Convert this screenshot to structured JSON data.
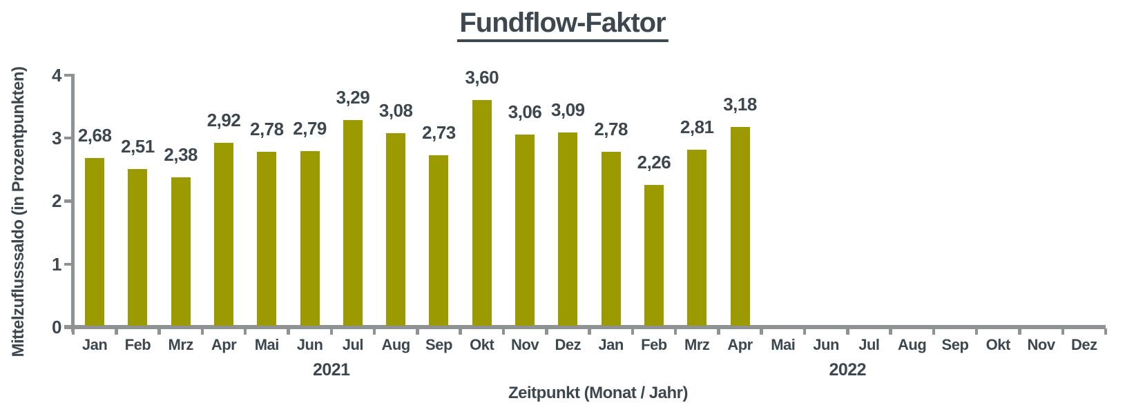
{
  "title": "Fundflow-Faktor",
  "colors": {
    "bar": "#9b9a00",
    "text": "#3d4750",
    "axis": "#8e9295"
  },
  "chart_data": {
    "type": "bar",
    "title": "Fundflow-Faktor",
    "xlabel": "Zeitpunkt (Monat / Jahr)",
    "ylabel": "Mittelzuflusssaldo (in Prozentpunkten)",
    "ylim": [
      0,
      4
    ],
    "ytick_labels": [
      "0",
      "1",
      "2",
      "3",
      "4"
    ],
    "grid": false,
    "legend": false,
    "categories": [
      "Jan",
      "Feb",
      "Mrz",
      "Apr",
      "Mai",
      "Jun",
      "Jul",
      "Aug",
      "Sep",
      "Okt",
      "Nov",
      "Dez",
      "Jan",
      "Feb",
      "Mrz",
      "Apr",
      "Mai",
      "Jun",
      "Jul",
      "Aug",
      "Sep",
      "Okt",
      "Nov",
      "Dez"
    ],
    "year_groups": [
      {
        "label": "2021",
        "start_index": 0,
        "end_index": 11
      },
      {
        "label": "2022",
        "start_index": 12,
        "end_index": 23
      }
    ],
    "values": [
      2.68,
      2.51,
      2.38,
      2.92,
      2.78,
      2.79,
      3.29,
      3.08,
      2.73,
      3.6,
      3.06,
      3.09,
      2.78,
      2.26,
      2.81,
      3.18,
      null,
      null,
      null,
      null,
      null,
      null,
      null,
      null
    ],
    "value_labels": [
      "2,68",
      "2,51",
      "2,38",
      "2,92",
      "2,78",
      "2,79",
      "3,29",
      "3,08",
      "2,73",
      "3,60",
      "3,06",
      "3,09",
      "2,78",
      "2,26",
      "2,81",
      "3,18",
      null,
      null,
      null,
      null,
      null,
      null,
      null,
      null
    ]
  }
}
